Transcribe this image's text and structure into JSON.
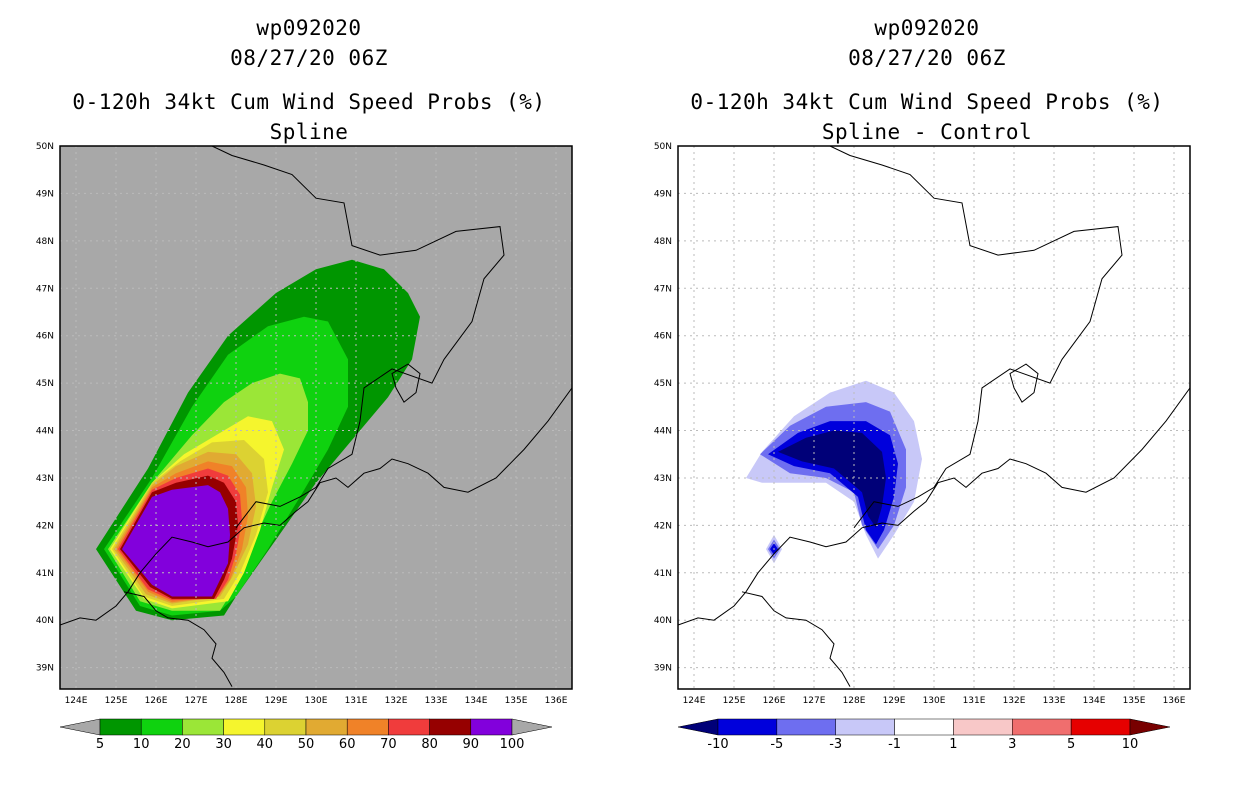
{
  "chart_data": [
    {
      "type": "heatmap",
      "kind": "filled-contour-map",
      "title_lines": [
        "wp092020",
        "08/27/20 06Z",
        "0-120h 34kt Cum Wind Speed Probs (%)",
        "Spline"
      ],
      "lon_range": [
        123.6,
        136.4
      ],
      "lat_range": [
        38.55,
        50.0
      ],
      "x_ticks": [
        124,
        125,
        126,
        127,
        128,
        129,
        130,
        131,
        132,
        133,
        134,
        135,
        136
      ],
      "x_tick_labels": [
        "124E",
        "125E",
        "126E",
        "127E",
        "128E",
        "129E",
        "130E",
        "131E",
        "132E",
        "133E",
        "134E",
        "135E",
        "136E"
      ],
      "y_ticks": [
        39,
        40,
        41,
        42,
        43,
        44,
        45,
        46,
        47,
        48,
        49,
        50
      ],
      "y_tick_labels": [
        "39N",
        "40N",
        "41N",
        "42N",
        "43N",
        "44N",
        "45N",
        "46N",
        "47N",
        "48N",
        "49N",
        "50N"
      ],
      "background": "#a8a8a8",
      "grid": true,
      "colorbar": {
        "labels": [
          "5",
          "10",
          "20",
          "30",
          "40",
          "50",
          "60",
          "70",
          "80",
          "90",
          "100"
        ],
        "colors": [
          "#009600",
          "#0fd20f",
          "#9be637",
          "#f5f52d",
          "#dcd232",
          "#e1aa32",
          "#f08228",
          "#f03c3c",
          "#960000",
          "#8200dc"
        ],
        "low_color": "#a8a8a8",
        "high_color": "#a8a8a8"
      },
      "contours": [
        {
          "level": 5,
          "color": "#009600",
          "polygon": [
            [
              124.5,
              41.5
            ],
            [
              125.8,
              43.2
            ],
            [
              126.8,
              44.8
            ],
            [
              127.8,
              46.0
            ],
            [
              129.0,
              46.9
            ],
            [
              130.0,
              47.4
            ],
            [
              130.9,
              47.6
            ],
            [
              131.7,
              47.4
            ],
            [
              132.3,
              46.9
            ],
            [
              132.6,
              46.4
            ],
            [
              132.4,
              45.5
            ],
            [
              131.8,
              44.7
            ],
            [
              130.9,
              43.8
            ],
            [
              130.0,
              42.9
            ],
            [
              129.0,
              41.7
            ],
            [
              128.0,
              40.5
            ],
            [
              127.7,
              40.1
            ],
            [
              126.4,
              40.0
            ],
            [
              125.5,
              40.2
            ]
          ]
        },
        {
          "level": 10,
          "color": "#0fd20f",
          "polygon": [
            [
              124.7,
              41.5
            ],
            [
              125.9,
              43.0
            ],
            [
              126.9,
              44.5
            ],
            [
              127.8,
              45.6
            ],
            [
              128.8,
              46.2
            ],
            [
              129.7,
              46.4
            ],
            [
              130.3,
              46.3
            ],
            [
              130.8,
              45.5
            ],
            [
              130.8,
              44.5
            ],
            [
              130.3,
              43.6
            ],
            [
              129.6,
              42.6
            ],
            [
              128.8,
              41.5
            ],
            [
              128.0,
              40.5
            ],
            [
              127.6,
              40.2
            ],
            [
              126.4,
              40.1
            ],
            [
              125.6,
              40.3
            ]
          ]
        },
        {
          "level": 20,
          "color": "#9be637",
          "polygon": [
            [
              124.8,
              41.5
            ],
            [
              125.9,
              42.9
            ],
            [
              126.9,
              43.9
            ],
            [
              127.7,
              44.6
            ],
            [
              128.4,
              45.0
            ],
            [
              129.1,
              45.2
            ],
            [
              129.6,
              45.1
            ],
            [
              129.8,
              44.6
            ],
            [
              129.8,
              44.0
            ],
            [
              129.4,
              43.3
            ],
            [
              128.9,
              42.5
            ],
            [
              128.4,
              41.6
            ],
            [
              127.9,
              40.6
            ],
            [
              127.6,
              40.2
            ],
            [
              126.4,
              40.2
            ],
            [
              125.6,
              40.4
            ]
          ]
        },
        {
          "level": 30,
          "color": "#f5f52d",
          "polygon": [
            [
              124.85,
              41.5
            ],
            [
              125.9,
              42.9
            ],
            [
              126.7,
              43.5
            ],
            [
              127.5,
              43.9
            ],
            [
              128.3,
              44.3
            ],
            [
              128.9,
              44.2
            ],
            [
              129.2,
              43.6
            ],
            [
              128.9,
              42.8
            ],
            [
              128.6,
              41.9
            ],
            [
              128.2,
              41.0
            ],
            [
              127.8,
              40.4
            ],
            [
              126.4,
              40.25
            ],
            [
              125.7,
              40.45
            ]
          ]
        },
        {
          "level": 40,
          "color": "#dcd232",
          "polygon": [
            [
              124.9,
              41.5
            ],
            [
              125.9,
              42.9
            ],
            [
              126.6,
              43.35
            ],
            [
              127.4,
              43.75
            ],
            [
              128.2,
              43.8
            ],
            [
              128.7,
              43.4
            ],
            [
              128.8,
              42.7
            ],
            [
              128.5,
              41.8
            ],
            [
              128.1,
              41.0
            ],
            [
              127.7,
              40.45
            ],
            [
              126.4,
              40.3
            ],
            [
              125.7,
              40.5
            ]
          ]
        },
        {
          "level": 50,
          "color": "#e1aa32",
          "polygon": [
            [
              124.95,
              41.5
            ],
            [
              125.9,
              42.85
            ],
            [
              126.5,
              43.25
            ],
            [
              127.3,
              43.55
            ],
            [
              128.0,
              43.5
            ],
            [
              128.4,
              43.1
            ],
            [
              128.5,
              42.4
            ],
            [
              128.3,
              41.6
            ],
            [
              127.9,
              40.9
            ],
            [
              127.6,
              40.5
            ],
            [
              126.4,
              40.35
            ],
            [
              125.75,
              40.55
            ]
          ]
        },
        {
          "level": 60,
          "color": "#f08228",
          "polygon": [
            [
              125.0,
              41.5
            ],
            [
              125.9,
              42.8
            ],
            [
              126.5,
              43.1
            ],
            [
              127.3,
              43.35
            ],
            [
              127.9,
              43.25
            ],
            [
              128.25,
              42.8
            ],
            [
              128.3,
              42.2
            ],
            [
              128.15,
              41.5
            ],
            [
              127.85,
              40.85
            ],
            [
              127.55,
              40.5
            ],
            [
              126.4,
              40.38
            ],
            [
              125.8,
              40.6
            ]
          ]
        },
        {
          "level": 70,
          "color": "#f03c3c",
          "polygon": [
            [
              125.05,
              41.5
            ],
            [
              125.9,
              42.75
            ],
            [
              126.5,
              43.0
            ],
            [
              127.3,
              43.2
            ],
            [
              127.8,
              43.05
            ],
            [
              128.1,
              42.65
            ],
            [
              128.15,
              42.1
            ],
            [
              128.0,
              41.4
            ],
            [
              127.8,
              40.85
            ],
            [
              127.5,
              40.45
            ],
            [
              126.4,
              40.42
            ],
            [
              125.8,
              40.65
            ]
          ]
        },
        {
          "level": 80,
          "color": "#960000",
          "polygon": [
            [
              125.1,
              41.5
            ],
            [
              125.9,
              42.7
            ],
            [
              126.5,
              42.9
            ],
            [
              127.3,
              43.05
            ],
            [
              127.7,
              42.9
            ],
            [
              128.0,
              42.5
            ],
            [
              128.05,
              42.0
            ],
            [
              127.9,
              41.3
            ],
            [
              127.7,
              40.85
            ],
            [
              127.45,
              40.45
            ],
            [
              126.4,
              40.45
            ],
            [
              125.85,
              40.7
            ]
          ]
        },
        {
          "level": 90,
          "color": "#8200dc",
          "polygon": [
            [
              125.15,
              41.5
            ],
            [
              125.9,
              42.6
            ],
            [
              126.4,
              42.75
            ],
            [
              127.3,
              42.85
            ],
            [
              127.6,
              42.7
            ],
            [
              127.8,
              42.35
            ],
            [
              127.85,
              41.8
            ],
            [
              127.8,
              41.2
            ],
            [
              127.6,
              40.85
            ],
            [
              127.4,
              40.5
            ],
            [
              126.4,
              40.5
            ],
            [
              125.9,
              40.75
            ]
          ]
        }
      ]
    },
    {
      "type": "heatmap",
      "kind": "filled-contour-map",
      "title_lines": [
        "wp092020",
        "08/27/20 06Z",
        "0-120h 34kt Cum Wind Speed Probs (%)",
        "Spline - Control"
      ],
      "lon_range": [
        123.6,
        136.4
      ],
      "lat_range": [
        38.55,
        50.0
      ],
      "x_ticks": [
        124,
        125,
        126,
        127,
        128,
        129,
        130,
        131,
        132,
        133,
        134,
        135,
        136
      ],
      "x_tick_labels": [
        "124E",
        "125E",
        "126E",
        "127E",
        "128E",
        "129E",
        "130E",
        "131E",
        "132E",
        "133E",
        "134E",
        "135E",
        "136E"
      ],
      "y_ticks": [
        39,
        40,
        41,
        42,
        43,
        44,
        45,
        46,
        47,
        48,
        49,
        50
      ],
      "y_tick_labels": [
        "39N",
        "40N",
        "41N",
        "42N",
        "43N",
        "44N",
        "45N",
        "46N",
        "47N",
        "48N",
        "49N",
        "50N"
      ],
      "background": "#ffffff",
      "grid": true,
      "colorbar": {
        "labels": [
          "-10",
          "-5",
          "-3",
          "-1",
          "1",
          "3",
          "5",
          "10"
        ],
        "colors": [
          "#0000dc",
          "#6e6ef0",
          "#c8c8f8",
          "#ffffff",
          "#f8c8c8",
          "#f06e6e",
          "#e60000"
        ],
        "low_color": "#000078",
        "high_color": "#780000"
      },
      "contours": [
        {
          "level": -1,
          "color": "#c8c8f8",
          "polygon": [
            [
              125.3,
              43.0
            ],
            [
              125.7,
              43.55
            ],
            [
              126.5,
              44.3
            ],
            [
              127.4,
              44.8
            ],
            [
              128.3,
              45.05
            ],
            [
              129.0,
              44.8
            ],
            [
              129.5,
              44.2
            ],
            [
              129.7,
              43.4
            ],
            [
              129.5,
              42.5
            ],
            [
              129.0,
              41.8
            ],
            [
              128.6,
              41.3
            ],
            [
              128.3,
              41.8
            ],
            [
              128.0,
              42.5
            ],
            [
              127.3,
              42.9
            ],
            [
              126.4,
              42.9
            ],
            [
              125.7,
              42.9
            ]
          ]
        },
        {
          "level": -1,
          "color": "#c8c8f8",
          "polygon": [
            [
              125.8,
              41.5
            ],
            [
              126.0,
              41.8
            ],
            [
              126.2,
              41.5
            ],
            [
              126.0,
              41.2
            ]
          ]
        },
        {
          "level": -3,
          "color": "#6e6ef0",
          "polygon": [
            [
              125.65,
              43.5
            ],
            [
              126.4,
              44.1
            ],
            [
              127.3,
              44.5
            ],
            [
              128.3,
              44.6
            ],
            [
              128.9,
              44.4
            ],
            [
              129.3,
              43.6
            ],
            [
              129.3,
              42.8
            ],
            [
              129.0,
              42.0
            ],
            [
              128.6,
              41.5
            ],
            [
              128.2,
              42.0
            ],
            [
              128.0,
              42.7
            ],
            [
              127.3,
              43.0
            ],
            [
              126.4,
              43.1
            ]
          ]
        },
        {
          "level": -3,
          "color": "#6e6ef0",
          "polygon": [
            [
              125.85,
              41.5
            ],
            [
              126.0,
              41.7
            ],
            [
              126.15,
              41.5
            ],
            [
              126.0,
              41.3
            ]
          ]
        },
        {
          "level": -5,
          "color": "#0000dc",
          "polygon": [
            [
              125.85,
              43.5
            ],
            [
              126.6,
              43.95
            ],
            [
              127.4,
              44.2
            ],
            [
              128.3,
              44.2
            ],
            [
              128.9,
              43.9
            ],
            [
              129.1,
              43.3
            ],
            [
              129.0,
              42.6
            ],
            [
              128.75,
              41.9
            ],
            [
              128.55,
              41.6
            ],
            [
              128.3,
              41.9
            ],
            [
              128.1,
              42.6
            ],
            [
              127.4,
              43.1
            ],
            [
              126.5,
              43.25
            ]
          ]
        },
        {
          "level": -5,
          "color": "#0000dc",
          "polygon": [
            [
              125.9,
              41.5
            ],
            [
              126.0,
              41.62
            ],
            [
              126.1,
              41.5
            ],
            [
              126.0,
              41.38
            ]
          ]
        },
        {
          "level": -10,
          "color": "#000078",
          "polygon": [
            [
              126.1,
              43.55
            ],
            [
              126.8,
              43.85
            ],
            [
              127.5,
              44.0
            ],
            [
              128.2,
              43.95
            ],
            [
              128.7,
              43.55
            ],
            [
              128.8,
              43.0
            ],
            [
              128.7,
              42.4
            ],
            [
              128.55,
              41.95
            ],
            [
              128.35,
              42.2
            ],
            [
              128.2,
              42.7
            ],
            [
              127.5,
              43.2
            ],
            [
              126.7,
              43.35
            ]
          ]
        }
      ]
    }
  ]
}
